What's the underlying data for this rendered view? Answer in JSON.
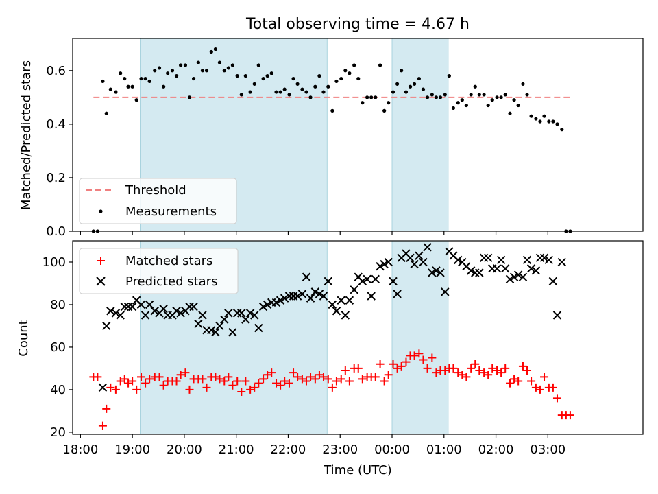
{
  "chart_data": {
    "title": "Total observing time = 4.67 h",
    "xlabel": "Time (UTC)",
    "x_tick_labels": [
      "18:00",
      "19:00",
      "20:00",
      "21:00",
      "22:00",
      "23:00",
      "00:00",
      "01:00",
      "02:00",
      "03:00"
    ],
    "x_tick_hours": [
      18,
      19,
      20,
      21,
      22,
      23,
      24,
      25,
      26,
      27
    ],
    "xlim_hours": [
      17.85,
      28.83
    ],
    "shaded_intervals_hours": [
      [
        19.15,
        22.75
      ],
      [
        24.0,
        25.08
      ]
    ],
    "shade_color": "#d4eaf1",
    "panels": [
      {
        "type": "scatter",
        "ylabel": "Matched/Predicted stars",
        "ylim": [
          0,
          0.72
        ],
        "yticks": [
          0.0,
          0.2,
          0.4,
          0.6
        ],
        "ytick_labels": [
          "0.0",
          "0.2",
          "0.4",
          "0.6"
        ],
        "legend": {
          "position": "lower-left",
          "entries": [
            "Threshold",
            "Measurements"
          ]
        },
        "threshold": {
          "name": "Threshold",
          "value": 0.5,
          "x_range": [
            18.25,
            27.45
          ],
          "color": "#f08080"
        },
        "series": [
          {
            "name": "Measurements",
            "marker": "dot",
            "color": "#000000",
            "x": [
              18.25,
              18.33,
              18.43,
              18.5,
              18.58,
              18.68,
              18.77,
              18.85,
              18.92,
              19.0,
              19.08,
              19.17,
              19.25,
              19.33,
              19.43,
              19.52,
              19.6,
              19.68,
              19.77,
              19.85,
              19.93,
              20.02,
              20.1,
              20.18,
              20.27,
              20.35,
              20.43,
              20.52,
              20.6,
              20.68,
              20.77,
              20.85,
              20.93,
              21.02,
              21.1,
              21.18,
              21.27,
              21.35,
              21.43,
              21.52,
              21.6,
              21.68,
              21.77,
              21.85,
              21.93,
              22.02,
              22.1,
              22.18,
              22.27,
              22.35,
              22.43,
              22.52,
              22.6,
              22.68,
              22.77,
              22.85,
              22.93,
              23.02,
              23.1,
              23.18,
              23.27,
              23.35,
              23.43,
              23.52,
              23.6,
              23.68,
              23.77,
              23.85,
              23.93,
              24.02,
              24.1,
              24.18,
              24.27,
              24.35,
              24.43,
              24.52,
              24.6,
              24.68,
              24.77,
              24.85,
              24.93,
              25.02,
              25.1,
              25.18,
              25.27,
              25.35,
              25.43,
              25.52,
              25.6,
              25.68,
              25.77,
              25.85,
              25.93,
              26.02,
              26.1,
              26.18,
              26.27,
              26.35,
              26.43,
              26.52,
              26.6,
              26.68,
              26.77,
              26.85,
              26.93,
              27.02,
              27.1,
              27.18,
              27.27,
              27.35,
              27.43
            ],
            "y": [
              0.0,
              0.0,
              0.56,
              0.44,
              0.53,
              0.52,
              0.59,
              0.57,
              0.54,
              0.54,
              0.49,
              0.57,
              0.57,
              0.56,
              0.6,
              0.61,
              0.54,
              0.59,
              0.6,
              0.58,
              0.62,
              0.62,
              0.5,
              0.57,
              0.63,
              0.6,
              0.6,
              0.67,
              0.68,
              0.63,
              0.6,
              0.61,
              0.62,
              0.58,
              0.51,
              0.58,
              0.52,
              0.55,
              0.62,
              0.57,
              0.58,
              0.59,
              0.52,
              0.52,
              0.53,
              0.51,
              0.57,
              0.55,
              0.53,
              0.52,
              0.5,
              0.54,
              0.58,
              0.52,
              0.54,
              0.45,
              0.56,
              0.57,
              0.6,
              0.59,
              0.62,
              0.57,
              0.48,
              0.5,
              0.5,
              0.5,
              0.62,
              0.45,
              0.48,
              0.52,
              0.55,
              0.6,
              0.52,
              0.54,
              0.55,
              0.57,
              0.53,
              0.5,
              0.51,
              0.5,
              0.5,
              0.51,
              0.58,
              0.46,
              0.48,
              0.49,
              0.47,
              0.51,
              0.54,
              0.51,
              0.51,
              0.47,
              0.49,
              0.5,
              0.5,
              0.51,
              0.44,
              0.49,
              0.47,
              0.55,
              0.51,
              0.43,
              0.42,
              0.41,
              0.43,
              0.41,
              0.41,
              0.4,
              0.38,
              0.0,
              0.0
            ]
          }
        ]
      },
      {
        "type": "scatter",
        "ylabel": "Count",
        "ylim": [
          19,
          110
        ],
        "yticks": [
          20,
          40,
          60,
          80,
          100
        ],
        "ytick_labels": [
          "20",
          "40",
          "60",
          "80",
          "100"
        ],
        "legend": {
          "position": "upper-left",
          "entries": [
            "Matched stars",
            "Predicted stars"
          ]
        },
        "series": [
          {
            "name": "Matched stars",
            "marker": "plus",
            "color": "#ff0000",
            "x": [
              18.25,
              18.33,
              18.43,
              18.5,
              18.58,
              18.68,
              18.77,
              18.85,
              18.92,
              19.0,
              19.08,
              19.17,
              19.25,
              19.33,
              19.43,
              19.52,
              19.6,
              19.68,
              19.77,
              19.85,
              19.93,
              20.02,
              20.1,
              20.18,
              20.27,
              20.35,
              20.43,
              20.52,
              20.6,
              20.68,
              20.77,
              20.85,
              20.93,
              21.02,
              21.1,
              21.18,
              21.27,
              21.35,
              21.43,
              21.52,
              21.6,
              21.68,
              21.77,
              21.85,
              21.93,
              22.02,
              22.1,
              22.18,
              22.27,
              22.35,
              22.43,
              22.52,
              22.6,
              22.68,
              22.77,
              22.85,
              22.93,
              23.02,
              23.1,
              23.18,
              23.27,
              23.35,
              23.43,
              23.52,
              23.6,
              23.68,
              23.77,
              23.85,
              23.93,
              24.02,
              24.1,
              24.18,
              24.27,
              24.35,
              24.43,
              24.52,
              24.6,
              24.68,
              24.77,
              24.85,
              24.93,
              25.02,
              25.1,
              25.18,
              25.27,
              25.35,
              25.43,
              25.52,
              25.6,
              25.68,
              25.77,
              25.85,
              25.93,
              26.02,
              26.1,
              26.18,
              26.27,
              26.35,
              26.43,
              26.52,
              26.6,
              26.68,
              26.77,
              26.85,
              26.93,
              27.02,
              27.1,
              27.18,
              27.27,
              27.35,
              27.43
            ],
            "y": [
              46,
              46,
              23,
              31,
              41,
              40,
              44,
              45,
              43,
              44,
              40,
              46,
              43,
              45,
              46,
              46,
              42,
              44,
              44,
              44,
              47,
              48,
              40,
              45,
              45,
              45,
              41,
              46,
              46,
              45,
              44,
              46,
              42,
              44,
              39,
              44,
              40,
              41,
              43,
              45,
              47,
              48,
              43,
              42,
              44,
              43,
              48,
              46,
              45,
              44,
              46,
              45,
              47,
              46,
              45,
              41,
              44,
              45,
              49,
              44,
              50,
              50,
              45,
              46,
              46,
              46,
              52,
              44,
              47,
              52,
              50,
              51,
              53,
              56,
              56,
              57,
              54,
              50,
              55,
              48,
              49,
              49,
              50,
              50,
              48,
              47,
              46,
              50,
              52,
              49,
              48,
              47,
              50,
              49,
              48,
              50,
              43,
              45,
              44,
              51,
              49,
              44,
              41,
              40,
              46,
              41,
              41,
              36,
              28,
              28,
              28
            ]
          },
          {
            "name": "Predicted stars",
            "marker": "x",
            "color": "#000000",
            "x": [
              18.43,
              18.5,
              18.58,
              18.68,
              18.77,
              18.85,
              18.92,
              19.0,
              19.08,
              19.17,
              19.25,
              19.33,
              19.43,
              19.52,
              19.6,
              19.68,
              19.77,
              19.85,
              19.93,
              20.02,
              20.1,
              20.18,
              20.27,
              20.35,
              20.43,
              20.52,
              20.6,
              20.68,
              20.77,
              20.85,
              20.93,
              21.02,
              21.1,
              21.18,
              21.27,
              21.35,
              21.43,
              21.52,
              21.6,
              21.68,
              21.77,
              21.85,
              21.93,
              22.02,
              22.1,
              22.18,
              22.27,
              22.35,
              22.43,
              22.52,
              22.6,
              22.68,
              22.77,
              22.85,
              22.93,
              23.02,
              23.1,
              23.18,
              23.27,
              23.35,
              23.43,
              23.52,
              23.6,
              23.68,
              23.77,
              23.85,
              23.93,
              24.02,
              24.1,
              24.18,
              24.27,
              24.35,
              24.43,
              24.52,
              24.6,
              24.68,
              24.77,
              24.85,
              24.93,
              25.02,
              25.1,
              25.18,
              25.27,
              25.35,
              25.43,
              25.52,
              25.6,
              25.68,
              25.77,
              25.85,
              25.93,
              26.02,
              26.1,
              26.18,
              26.27,
              26.35,
              26.43,
              26.52,
              26.6,
              26.68,
              26.77,
              26.85,
              26.93,
              27.02,
              27.1,
              27.18,
              27.27
            ],
            "y": [
              41,
              70,
              77,
              76,
              75,
              79,
              79,
              79,
              82,
              80,
              75,
              80,
              77,
              76,
              78,
              75,
              75,
              77,
              76,
              77,
              79,
              79,
              71,
              75,
              68,
              68,
              67,
              70,
              73,
              76,
              67,
              76,
              76,
              73,
              76,
              75,
              69,
              79,
              80,
              81,
              81,
              82,
              83,
              84,
              84,
              84,
              85,
              93,
              83,
              86,
              85,
              84,
              91,
              80,
              77,
              82,
              75,
              82,
              87,
              93,
              91,
              92,
              84,
              92,
              98,
              99,
              100,
              91,
              85,
              102,
              104,
              102,
              99,
              103,
              100,
              107,
              95,
              96,
              95,
              86,
              105,
              103,
              101,
              100,
              98,
              96,
              95,
              95,
              102,
              102,
              97,
              97,
              101,
              97,
              92,
              93,
              94,
              93,
              101,
              97,
              96,
              102,
              102,
              101,
              91,
              75,
              100
            ]
          }
        ]
      }
    ]
  }
}
